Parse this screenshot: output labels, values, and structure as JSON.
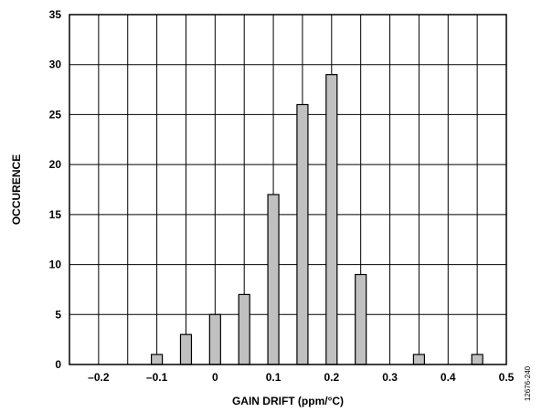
{
  "chart_data": {
    "type": "bar",
    "x": [
      -0.1,
      -0.05,
      0,
      0.05,
      0.1,
      0.15,
      0.2,
      0.25,
      0.35,
      0.45
    ],
    "values": [
      1,
      3,
      5,
      7,
      17,
      26,
      29,
      9,
      1,
      1
    ],
    "xlabel": "GAIN DRIFT (ppm/°C)",
    "ylabel": "OCCURENCE",
    "xlim": [
      -0.25,
      0.5
    ],
    "ylim": [
      0,
      35
    ],
    "x_ticks": [
      "–0.2",
      "–0.1",
      "0",
      "0.1",
      "0.2",
      "0.3",
      "0.4",
      "0.5"
    ],
    "y_ticks": [
      "0",
      "5",
      "10",
      "15",
      "20",
      "25",
      "30",
      "35"
    ],
    "grid": true,
    "bar_color": "#c0c0c0"
  },
  "figure_id": "12676-240"
}
